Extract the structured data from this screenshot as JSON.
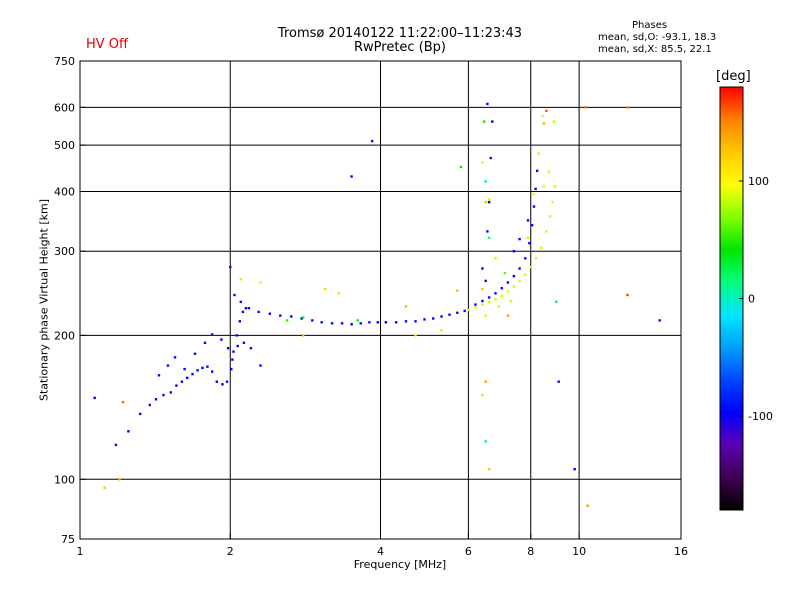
{
  "status": {
    "hv": "HV Off"
  },
  "title": {
    "line1": "Tromsø 20140122 11:22:00–11:23:43",
    "line2": "RwPretec (Bp)"
  },
  "phases": {
    "header": "Phases",
    "o_line": "mean, sd,O: -93.1, 18.3",
    "x_line": "mean, sd,X: 85.5, 22.1"
  },
  "colors": {
    "axis": "#000000",
    "grid": "#000000",
    "hv_off": "#e00000",
    "background": "#ffffff"
  },
  "chart_data": {
    "type": "scatter",
    "xlabel": "Frequency [MHz]",
    "ylabel": "Stationary phase Virtual Height [km]",
    "xscale": "log",
    "yscale": "log",
    "xlim": [
      1,
      16
    ],
    "ylim": [
      75,
      750
    ],
    "xticks": [
      1,
      2,
      4,
      6,
      8,
      10,
      16
    ],
    "yticks": [
      75,
      100,
      200,
      300,
      400,
      500,
      600,
      750
    ],
    "xgrid": [
      2,
      4,
      6,
      8,
      10
    ],
    "ygrid": [
      100,
      200,
      300,
      400,
      500,
      600
    ],
    "grid": true,
    "colorbar": {
      "label": "[deg]",
      "range": [
        -180,
        180
      ],
      "ticks": [
        100,
        0,
        -100
      ],
      "colors": [
        "#000000",
        "#3d0050",
        "#5a00b4",
        "#0000ff",
        "#0046ff",
        "#00a0ff",
        "#00e6ff",
        "#00ff80",
        "#00e600",
        "#80ff00",
        "#ffff00",
        "#ffc800",
        "#ff8000",
        "#ff0000"
      ]
    },
    "series": [
      {
        "points": [
          [
            1.18,
            118,
            -96
          ],
          [
            1.25,
            126,
            -96
          ],
          [
            1.32,
            137,
            -95
          ],
          [
            1.38,
            143,
            -92
          ],
          [
            1.42,
            147,
            -97
          ],
          [
            1.47,
            150,
            -91
          ],
          [
            1.52,
            152,
            -95
          ],
          [
            1.56,
            157,
            -96
          ],
          [
            1.6,
            160,
            -93
          ],
          [
            1.64,
            163,
            -97
          ],
          [
            1.68,
            166,
            -94
          ],
          [
            1.72,
            169,
            -92
          ],
          [
            1.76,
            171,
            -96
          ],
          [
            1.8,
            172,
            -93
          ],
          [
            1.84,
            168,
            -92
          ],
          [
            1.88,
            160,
            -95
          ],
          [
            1.93,
            158,
            -96
          ],
          [
            1.97,
            160,
            -91
          ],
          [
            2.01,
            170,
            -97
          ],
          [
            2.03,
            185,
            -94
          ],
          [
            2.06,
            200,
            -92
          ],
          [
            2.09,
            214,
            -96
          ],
          [
            2.12,
            224,
            -93
          ],
          [
            2.15,
            228,
            -97
          ],
          [
            1.44,
            165,
            -95
          ],
          [
            1.5,
            173,
            -95
          ],
          [
            1.55,
            180,
            -92
          ],
          [
            1.62,
            170,
            -94
          ],
          [
            1.7,
            183,
            -96
          ],
          [
            1.78,
            193,
            -92
          ],
          [
            1.84,
            201,
            -93
          ],
          [
            1.92,
            196,
            -97
          ],
          [
            1.98,
            188,
            -95
          ],
          [
            2.02,
            178,
            -96
          ],
          [
            2.07,
            190,
            -95
          ],
          [
            2.13,
            193,
            -92
          ],
          [
            2.2,
            188,
            -96
          ],
          [
            2.3,
            173,
            -94
          ],
          [
            2.04,
            243,
            -91
          ],
          [
            2.1,
            235,
            -92
          ],
          [
            2.18,
            228,
            -90
          ],
          [
            2.28,
            224,
            -93
          ],
          [
            2.4,
            222,
            -96
          ],
          [
            2.52,
            220,
            -97
          ],
          [
            2.65,
            219,
            -95
          ],
          [
            2.78,
            217,
            -94
          ],
          [
            2.92,
            215,
            -92
          ],
          [
            3.05,
            213,
            -92
          ],
          [
            3.2,
            212,
            -93
          ],
          [
            3.35,
            212,
            -96
          ],
          [
            3.5,
            211,
            -97
          ],
          [
            3.65,
            212,
            -95
          ],
          [
            3.8,
            213,
            -91
          ],
          [
            3.95,
            213,
            -95
          ],
          [
            4.1,
            213,
            -97
          ],
          [
            4.3,
            213,
            -93
          ],
          [
            4.5,
            214,
            -91
          ],
          [
            4.7,
            214,
            -92
          ],
          [
            4.9,
            216,
            -90
          ],
          [
            5.1,
            217,
            -94
          ],
          [
            5.3,
            219,
            -96
          ],
          [
            5.5,
            221,
            -95
          ],
          [
            5.7,
            223,
            -92
          ],
          [
            5.9,
            225,
            -93
          ],
          [
            6.2,
            232,
            -96
          ],
          [
            6.4,
            236,
            -97
          ],
          [
            6.6,
            240,
            -95
          ],
          [
            6.8,
            245,
            -93
          ],
          [
            7.0,
            251,
            -91
          ],
          [
            7.2,
            258,
            -95
          ],
          [
            7.4,
            266,
            -96
          ],
          [
            7.6,
            276,
            -94
          ],
          [
            7.8,
            290,
            -92
          ],
          [
            7.95,
            312,
            -96
          ],
          [
            8.05,
            340,
            -93
          ],
          [
            8.12,
            372,
            -97
          ],
          [
            8.18,
            405,
            -94
          ],
          [
            8.24,
            442,
            -92
          ],
          [
            7.4,
            300,
            -95
          ],
          [
            7.6,
            318,
            -92
          ],
          [
            7.9,
            348,
            -93
          ],
          [
            6.4,
            276,
            -96
          ],
          [
            6.5,
            260,
            -95
          ],
          [
            6.55,
            330,
            -93
          ],
          [
            6.6,
            380,
            -94
          ],
          [
            6.65,
            470,
            -91
          ],
          [
            6.7,
            560,
            -97
          ],
          [
            6.55,
            610,
            -96
          ],
          [
            3.5,
            430,
            -94
          ],
          [
            3.85,
            510,
            -92
          ],
          [
            1.07,
            148,
            -97
          ],
          [
            2.0,
            278,
            -93
          ],
          [
            9.8,
            105,
            -96
          ],
          [
            9.1,
            160,
            -95
          ],
          [
            14.5,
            215,
            -92
          ]
        ]
      },
      {
        "points": [
          [
            6.0,
            226,
            85
          ],
          [
            6.2,
            229,
            87
          ],
          [
            6.4,
            232,
            84
          ],
          [
            6.6,
            235,
            88
          ],
          [
            6.8,
            238,
            83
          ],
          [
            7.0,
            242,
            86
          ],
          [
            7.2,
            247,
            89
          ],
          [
            7.4,
            253,
            84
          ],
          [
            7.6,
            260,
            85
          ],
          [
            7.8,
            268,
            87
          ],
          [
            8.0,
            278,
            88
          ],
          [
            8.2,
            290,
            84
          ],
          [
            8.4,
            305,
            83
          ],
          [
            8.6,
            330,
            86
          ],
          [
            8.75,
            355,
            87
          ],
          [
            8.85,
            380,
            89
          ],
          [
            8.95,
            410,
            85
          ],
          [
            8.5,
            410,
            88
          ],
          [
            8.7,
            440,
            83
          ],
          [
            8.3,
            480,
            85
          ],
          [
            8.45,
            575,
            90
          ],
          [
            8.9,
            560,
            84
          ],
          [
            6.5,
            220,
            85
          ],
          [
            6.9,
            230,
            88
          ],
          [
            7.3,
            236,
            86
          ],
          [
            5.3,
            205,
            83
          ],
          [
            4.7,
            200,
            86
          ],
          [
            3.3,
            245,
            84
          ],
          [
            2.3,
            258,
            87
          ],
          [
            2.1,
            262,
            84
          ],
          [
            6.4,
            460,
            87
          ],
          [
            6.8,
            290,
            85
          ],
          [
            7.9,
            320,
            83
          ],
          [
            8.1,
            395,
            88
          ],
          [
            6.6,
            385,
            86
          ]
        ]
      },
      {
        "points": [
          [
            6.5,
            380,
            130
          ],
          [
            6.4,
            250,
            125
          ],
          [
            7.2,
            220,
            140
          ],
          [
            5.7,
            248,
            130
          ],
          [
            3.1,
            250,
            120
          ],
          [
            4.5,
            230,
            135
          ],
          [
            2.8,
            200,
            130
          ],
          [
            6.5,
            160,
            140
          ],
          [
            6.6,
            105,
            125
          ],
          [
            10.3,
            600,
            155
          ],
          [
            12.5,
            600,
            150
          ],
          [
            10.4,
            88,
            145
          ],
          [
            1.22,
            145,
            158
          ],
          [
            1.12,
            96,
            125
          ],
          [
            1.2,
            100,
            140
          ],
          [
            8.5,
            555,
            130
          ],
          [
            8.6,
            590,
            160
          ],
          [
            12.5,
            243,
            165
          ],
          [
            6.4,
            150,
            120
          ]
        ]
      },
      {
        "points": [
          [
            6.5,
            420,
            15
          ],
          [
            6.45,
            560,
            40
          ],
          [
            6.6,
            320,
            10
          ],
          [
            3.6,
            215,
            30
          ],
          [
            2.6,
            215,
            55
          ],
          [
            9.0,
            235,
            25
          ],
          [
            5.8,
            450,
            45
          ],
          [
            6.5,
            120,
            20
          ],
          [
            7.1,
            270,
            60
          ],
          [
            2.8,
            218,
            35
          ]
        ]
      }
    ]
  }
}
